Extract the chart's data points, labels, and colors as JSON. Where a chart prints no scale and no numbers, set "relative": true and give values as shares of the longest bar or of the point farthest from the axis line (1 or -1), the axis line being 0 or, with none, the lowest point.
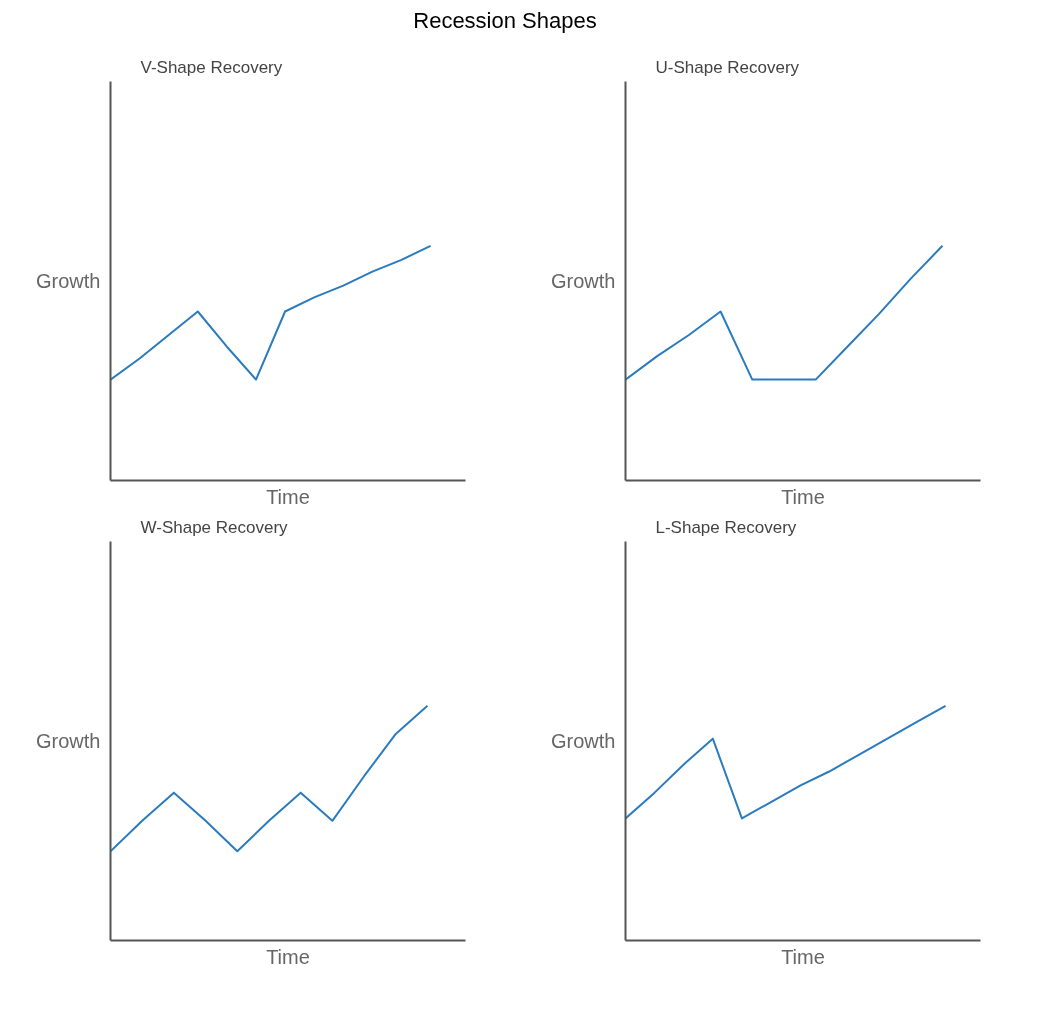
{
  "chart_data": [
    {
      "type": "line",
      "title": "V-Shape Recovery",
      "xlabel": "Time",
      "ylabel": "Growth",
      "relative": true,
      "annotations": [
        "Recession Shapes"
      ],
      "color": "#2b7bbf",
      "categories": [
        null,
        null,
        null,
        null,
        null,
        null,
        null,
        null,
        null,
        null,
        null,
        null
      ],
      "values": [
        0.43,
        0.52,
        0.62,
        0.72,
        0.57,
        0.43,
        0.72,
        0.78,
        0.83,
        0.89,
        0.94,
        1
      ]
    },
    {
      "type": "line",
      "title": "U-Shape Recovery",
      "xlabel": "Time",
      "ylabel": "Growth",
      "relative": true,
      "color": "#2b7bbf",
      "categories": [
        null,
        null,
        null,
        null,
        null,
        null,
        null,
        null,
        null,
        null,
        null
      ],
      "values": [
        0.43,
        0.53,
        0.62,
        0.72,
        0.43,
        0.43,
        0.43,
        0.57,
        0.71,
        0.86,
        1
      ]
    },
    {
      "type": "line",
      "title": "W-Shape Recovery",
      "xlabel": "Time",
      "ylabel": "Growth",
      "relative": true,
      "color": "#2b7bbf",
      "categories": [
        null,
        null,
        null,
        null,
        null,
        null,
        null,
        null,
        null,
        null,
        null
      ],
      "values": [
        0.38,
        0.51,
        0.63,
        0.51,
        0.38,
        0.51,
        0.63,
        0.51,
        0.7,
        0.88,
        1
      ]
    },
    {
      "type": "line",
      "title": "L-Shape Recovery",
      "xlabel": "Time",
      "ylabel": "Growth",
      "relative": true,
      "color": "#2b7bbf",
      "categories": [
        null,
        null,
        null,
        null,
        null,
        null,
        null,
        null,
        null,
        null,
        null,
        null
      ],
      "values": [
        0.52,
        0.63,
        0.75,
        0.86,
        0.52,
        0.59,
        0.66,
        0.72,
        0.79,
        0.86,
        0.93,
        1
      ]
    }
  ]
}
